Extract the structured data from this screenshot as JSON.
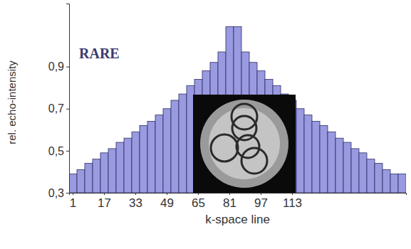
{
  "chart_data": {
    "type": "bar",
    "title": "RARE",
    "x_label": "k-space line",
    "y_label": "rel. echo-intensity",
    "categories": [
      "1",
      null,
      null,
      null,
      "17",
      null,
      null,
      null,
      "33",
      null,
      null,
      null,
      "49",
      null,
      null,
      null,
      "65",
      null,
      null,
      null,
      "81",
      null,
      null,
      null,
      "97",
      null,
      null,
      null,
      "113",
      null,
      null,
      null,
      null,
      null,
      null,
      null,
      null,
      null,
      null,
      null,
      null,
      null,
      null
    ],
    "values": [
      0.39,
      0.41,
      0.44,
      0.46,
      0.49,
      0.51,
      0.54,
      0.56,
      0.59,
      0.62,
      0.64,
      0.67,
      0.7,
      0.74,
      0.77,
      0.81,
      0.84,
      0.88,
      0.92,
      0.97,
      1.09,
      1.09,
      0.97,
      0.92,
      0.88,
      0.84,
      0.81,
      0.77,
      0.74,
      0.7,
      0.67,
      0.64,
      0.62,
      0.59,
      0.56,
      0.54,
      0.51,
      0.49,
      0.46,
      0.44,
      0.41,
      0.39,
      0.39
    ],
    "color": "#9a9ae0",
    "ylim": [
      0.3,
      1.2
    ],
    "yticks": [
      {
        "value": 0.3,
        "label": "0,3"
      },
      {
        "value": 0.5,
        "label": "0,5"
      },
      {
        "value": 0.7,
        "label": "0,7"
      },
      {
        "value": 0.9,
        "label": "0,9"
      }
    ],
    "grid": false
  }
}
